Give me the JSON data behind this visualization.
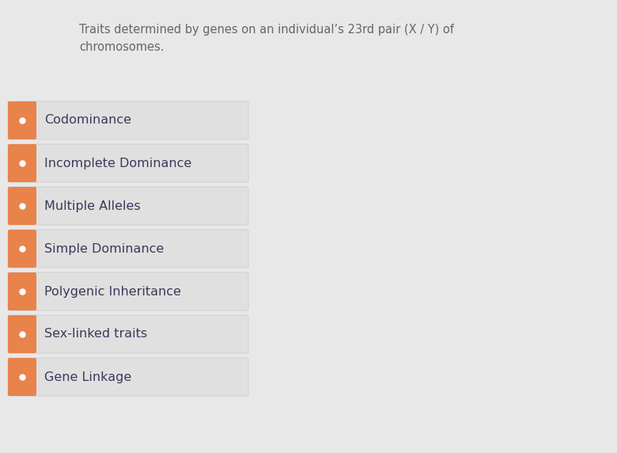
{
  "title_text": "Traits determined by genes on an individual’s 23rd pair (X / Y) of\nchromosomes.",
  "title_color": "#666666",
  "title_fontsize": 10.5,
  "background_color": "#e8e8e8",
  "items": [
    "Codominance",
    "Incomplete Dominance",
    "Multiple Alleles",
    "Simple Dominance",
    "Polygenic Inheritance",
    "Sex-linked traits",
    "Gene Linkage"
  ],
  "item_text_color": "#3a3a5c",
  "item_text_fontsize": 11.5,
  "box_bg_color": "#e0e0e0",
  "box_border_color": "#c8c8c8",
  "orange_color": "#e8834a",
  "dot_color": "#ffffff",
  "dot_outline_color": "#c06030"
}
